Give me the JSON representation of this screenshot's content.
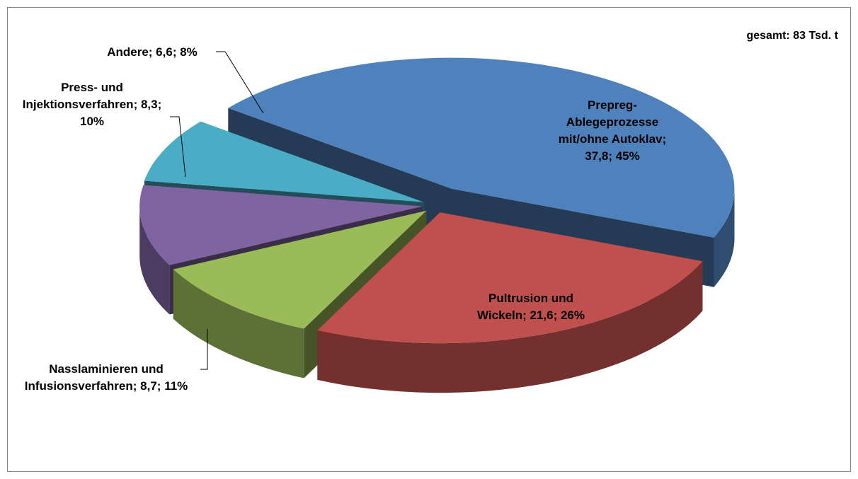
{
  "chart_data": {
    "type": "pie3d",
    "annotation": "gesamt: 83 Tsd. t",
    "label_separator": "; ",
    "categories": [
      "Prepreg-Ablegeprozesse mit/ohne Autoklav",
      "Pultrusion und Wickeln",
      "Nasslaminieren und Infusionsverfahren",
      "Press- und Injektionsverfahren",
      "Andere"
    ],
    "values": [
      37.8,
      21.6,
      8.7,
      8.3,
      6.6
    ],
    "value_labels": [
      "37,8",
      "21,6",
      "8,7",
      "8,3",
      "6,6"
    ],
    "percents": [
      45,
      26,
      11,
      10,
      8
    ],
    "percent_labels": [
      "45%",
      "26%",
      "11%",
      "10%",
      "8%"
    ],
    "colors": [
      "#4f81bd",
      "#c0504d",
      "#9bbb59",
      "#8064a2",
      "#4bacc6"
    ]
  }
}
